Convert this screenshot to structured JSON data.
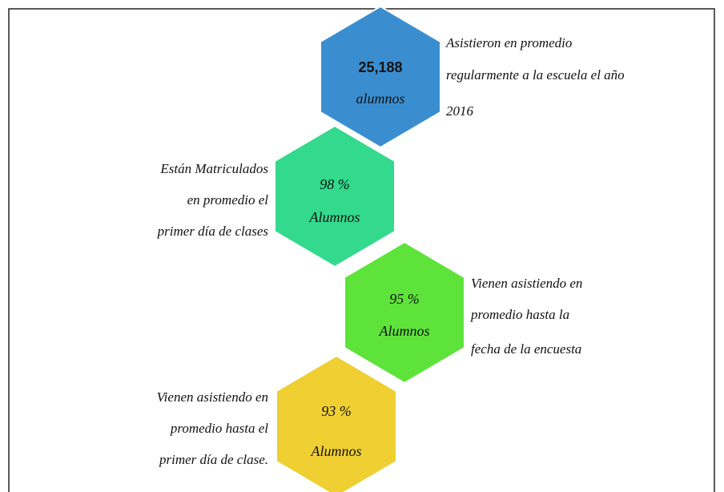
{
  "items": [
    {
      "value": "25,188",
      "unit": "alumnos",
      "description": [
        "Asistieron en promedio",
        "regularmente a la escuela el año",
        "2016"
      ]
    },
    {
      "value": "98 %",
      "unit": "Alumnos",
      "description": [
        "Están Matriculados",
        "en promedio el",
        "primer día de clases"
      ]
    },
    {
      "value": "95 %",
      "unit": "Alumnos",
      "description": [
        "Vienen asistiendo en",
        "promedio hasta la",
        "fecha de la encuesta"
      ]
    },
    {
      "value": "93 %",
      "unit": "Alumnos",
      "description": [
        "Vienen asistiendo en",
        "promedio hasta el",
        "primer día de clase."
      ]
    }
  ]
}
